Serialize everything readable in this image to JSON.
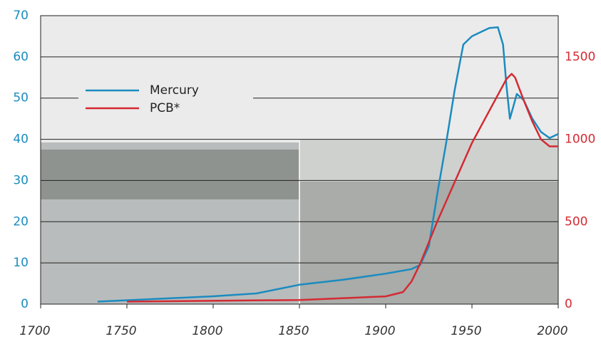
{
  "chart_data": {
    "type": "line",
    "xlim": [
      1700,
      2000
    ],
    "xticks": [
      1700,
      1750,
      1800,
      1850,
      1900,
      1950,
      2000
    ],
    "ylim": [
      0,
      70
    ],
    "yticks": [
      0,
      10,
      20,
      30,
      40,
      50,
      60,
      70
    ],
    "y2lim": [
      0,
      1750
    ],
    "y2ticks": [
      0,
      500,
      1000,
      1500
    ],
    "grid": true,
    "legend": "upper left",
    "series": [
      {
        "name": "Mercury",
        "color": "#1b8bc0",
        "x": [
          1733,
          1800,
          1825,
          1850,
          1875,
          1900,
          1915,
          1920,
          1925,
          1930,
          1935,
          1940,
          1945,
          1950,
          1960,
          1965,
          1968,
          1970,
          1972,
          1974,
          1976,
          1980,
          1985,
          1990,
          1995,
          2000
        ],
        "values": [
          0.6,
          1.9,
          2.6,
          4.7,
          5.9,
          7.4,
          8.5,
          9.5,
          14,
          27,
          39,
          52,
          63,
          65,
          67,
          67.2,
          63,
          53,
          45,
          48,
          51,
          49.5,
          45,
          41.8,
          40.3,
          41.3
        ]
      },
      {
        "name": "PCB*",
        "color": "#d42a33",
        "axis": "y2",
        "x": [
          1750,
          1850,
          1900,
          1910,
          1915,
          1920,
          1925,
          1930,
          1940,
          1950,
          1960,
          1970,
          1973,
          1975,
          1980,
          1985,
          1990,
          1995,
          2000
        ],
        "values": [
          15,
          25,
          47,
          73,
          138,
          246,
          375,
          504,
          741,
          978,
          1172,
          1366,
          1397,
          1375,
          1237,
          1108,
          1000,
          957,
          957
        ]
      }
    ]
  }
}
